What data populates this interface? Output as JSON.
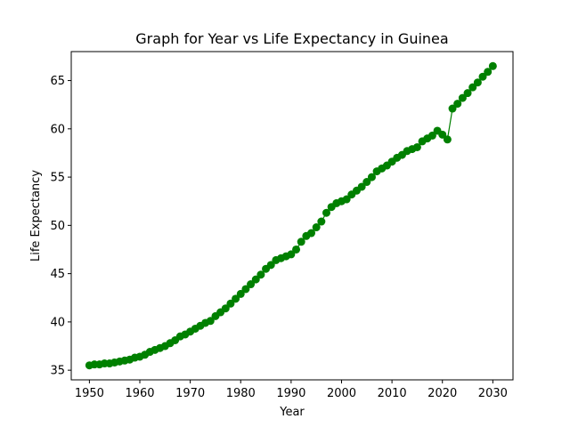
{
  "chart_data": {
    "type": "line",
    "title": "Graph for Year vs Life Expectancy in Guinea",
    "xlabel": "Year",
    "ylabel": "Life Expectancy",
    "xlim": [
      1946.4,
      2034.0
    ],
    "ylim": [
      34.0,
      68.0
    ],
    "xticks": [
      1950,
      1960,
      1970,
      1980,
      1990,
      2000,
      2010,
      2020,
      2030
    ],
    "yticks": [
      35,
      40,
      45,
      50,
      55,
      60,
      65
    ],
    "grid": false,
    "legend": "none",
    "color": "#008000",
    "marker": "circle",
    "series": [
      {
        "x": [
          1950,
          1951,
          1952,
          1953,
          1954,
          1955,
          1956,
          1957,
          1958,
          1959,
          1960,
          1961,
          1962,
          1963,
          1964,
          1965,
          1966,
          1967,
          1968,
          1969,
          1970,
          1971,
          1972,
          1973,
          1974,
          1975,
          1976,
          1977,
          1978,
          1979,
          1980,
          1981,
          1982,
          1983,
          1984,
          1985,
          1986,
          1987,
          1988,
          1989,
          1990,
          1991,
          1992,
          1993,
          1994,
          1995,
          1996,
          1997,
          1998,
          1999,
          2000,
          2001,
          2002,
          2003,
          2004,
          2005,
          2006,
          2007,
          2008,
          2009,
          2010,
          2011,
          2012,
          2013,
          2014,
          2015,
          2016,
          2017,
          2018,
          2019,
          2020,
          2021,
          2022,
          2023,
          2024,
          2025,
          2026,
          2027,
          2028,
          2029,
          2030
        ],
        "y": [
          35.5,
          35.6,
          35.6,
          35.7,
          35.7,
          35.8,
          35.9,
          36.0,
          36.1,
          36.3,
          36.4,
          36.6,
          36.9,
          37.1,
          37.3,
          37.5,
          37.8,
          38.1,
          38.5,
          38.7,
          39.0,
          39.3,
          39.6,
          39.9,
          40.1,
          40.6,
          41.0,
          41.4,
          41.9,
          42.4,
          42.9,
          43.4,
          43.9,
          44.4,
          44.9,
          45.5,
          45.9,
          46.4,
          46.6,
          46.8,
          47.0,
          47.5,
          48.3,
          48.9,
          49.2,
          49.8,
          50.4,
          51.3,
          51.9,
          52.3,
          52.5,
          52.7,
          53.2,
          53.6,
          54.0,
          54.5,
          55.0,
          55.6,
          55.9,
          56.2,
          56.6,
          57.0,
          57.3,
          57.7,
          57.9,
          58.1,
          58.7,
          59.0,
          59.3,
          59.8,
          59.4,
          58.9,
          62.1,
          62.6,
          63.2,
          63.7,
          64.3,
          64.8,
          65.4,
          65.9,
          66.5
        ]
      }
    ]
  }
}
